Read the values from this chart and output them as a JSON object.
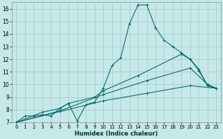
{
  "title": "",
  "xlabel": "Humidex (Indice chaleur)",
  "ylabel": "",
  "bg_color": "#c5e8e8",
  "grid_color": "#aacccc",
  "line_color": "#006666",
  "xlim": [
    -0.5,
    23.5
  ],
  "ylim": [
    7,
    16.5
  ],
  "xticks": [
    0,
    1,
    2,
    3,
    4,
    5,
    6,
    7,
    8,
    9,
    10,
    11,
    12,
    13,
    14,
    15,
    16,
    17,
    18,
    19,
    20,
    21,
    22,
    23
  ],
  "yticks": [
    7,
    8,
    9,
    10,
    11,
    12,
    13,
    14,
    15,
    16
  ],
  "series1": [
    [
      0,
      7
    ],
    [
      1,
      7.5
    ],
    [
      2,
      7.5
    ],
    [
      3,
      7.6
    ],
    [
      4,
      7.5
    ],
    [
      5,
      8.1
    ],
    [
      6,
      8.5
    ],
    [
      7,
      7.1
    ],
    [
      8,
      8.4
    ],
    [
      9,
      8.6
    ],
    [
      10,
      9.7
    ],
    [
      11,
      11.5
    ],
    [
      12,
      12.1
    ],
    [
      13,
      14.8
    ],
    [
      14,
      16.3
    ],
    [
      15,
      16.3
    ],
    [
      16,
      14.5
    ],
    [
      17,
      13.5
    ],
    [
      18,
      13.0
    ],
    [
      19,
      12.5
    ],
    [
      20,
      12.0
    ],
    [
      21,
      11.2
    ],
    [
      22,
      9.9
    ],
    [
      23,
      9.7
    ]
  ],
  "series2": [
    [
      0,
      7.0
    ],
    [
      3,
      7.8
    ],
    [
      5,
      8.1
    ],
    [
      6,
      8.5
    ],
    [
      9,
      9.0
    ],
    [
      10,
      9.5
    ],
    [
      14,
      10.7
    ],
    [
      19,
      12.4
    ],
    [
      20,
      12.0
    ],
    [
      21,
      11.1
    ],
    [
      22,
      9.9
    ],
    [
      23,
      9.7
    ]
  ],
  "series3": [
    [
      0,
      7.0
    ],
    [
      5,
      7.9
    ],
    [
      10,
      9.2
    ],
    [
      15,
      10.3
    ],
    [
      20,
      11.3
    ],
    [
      22,
      10.0
    ],
    [
      23,
      9.7
    ]
  ],
  "series4": [
    [
      0,
      7.0
    ],
    [
      10,
      8.7
    ],
    [
      15,
      9.3
    ],
    [
      20,
      9.9
    ],
    [
      23,
      9.7
    ]
  ]
}
